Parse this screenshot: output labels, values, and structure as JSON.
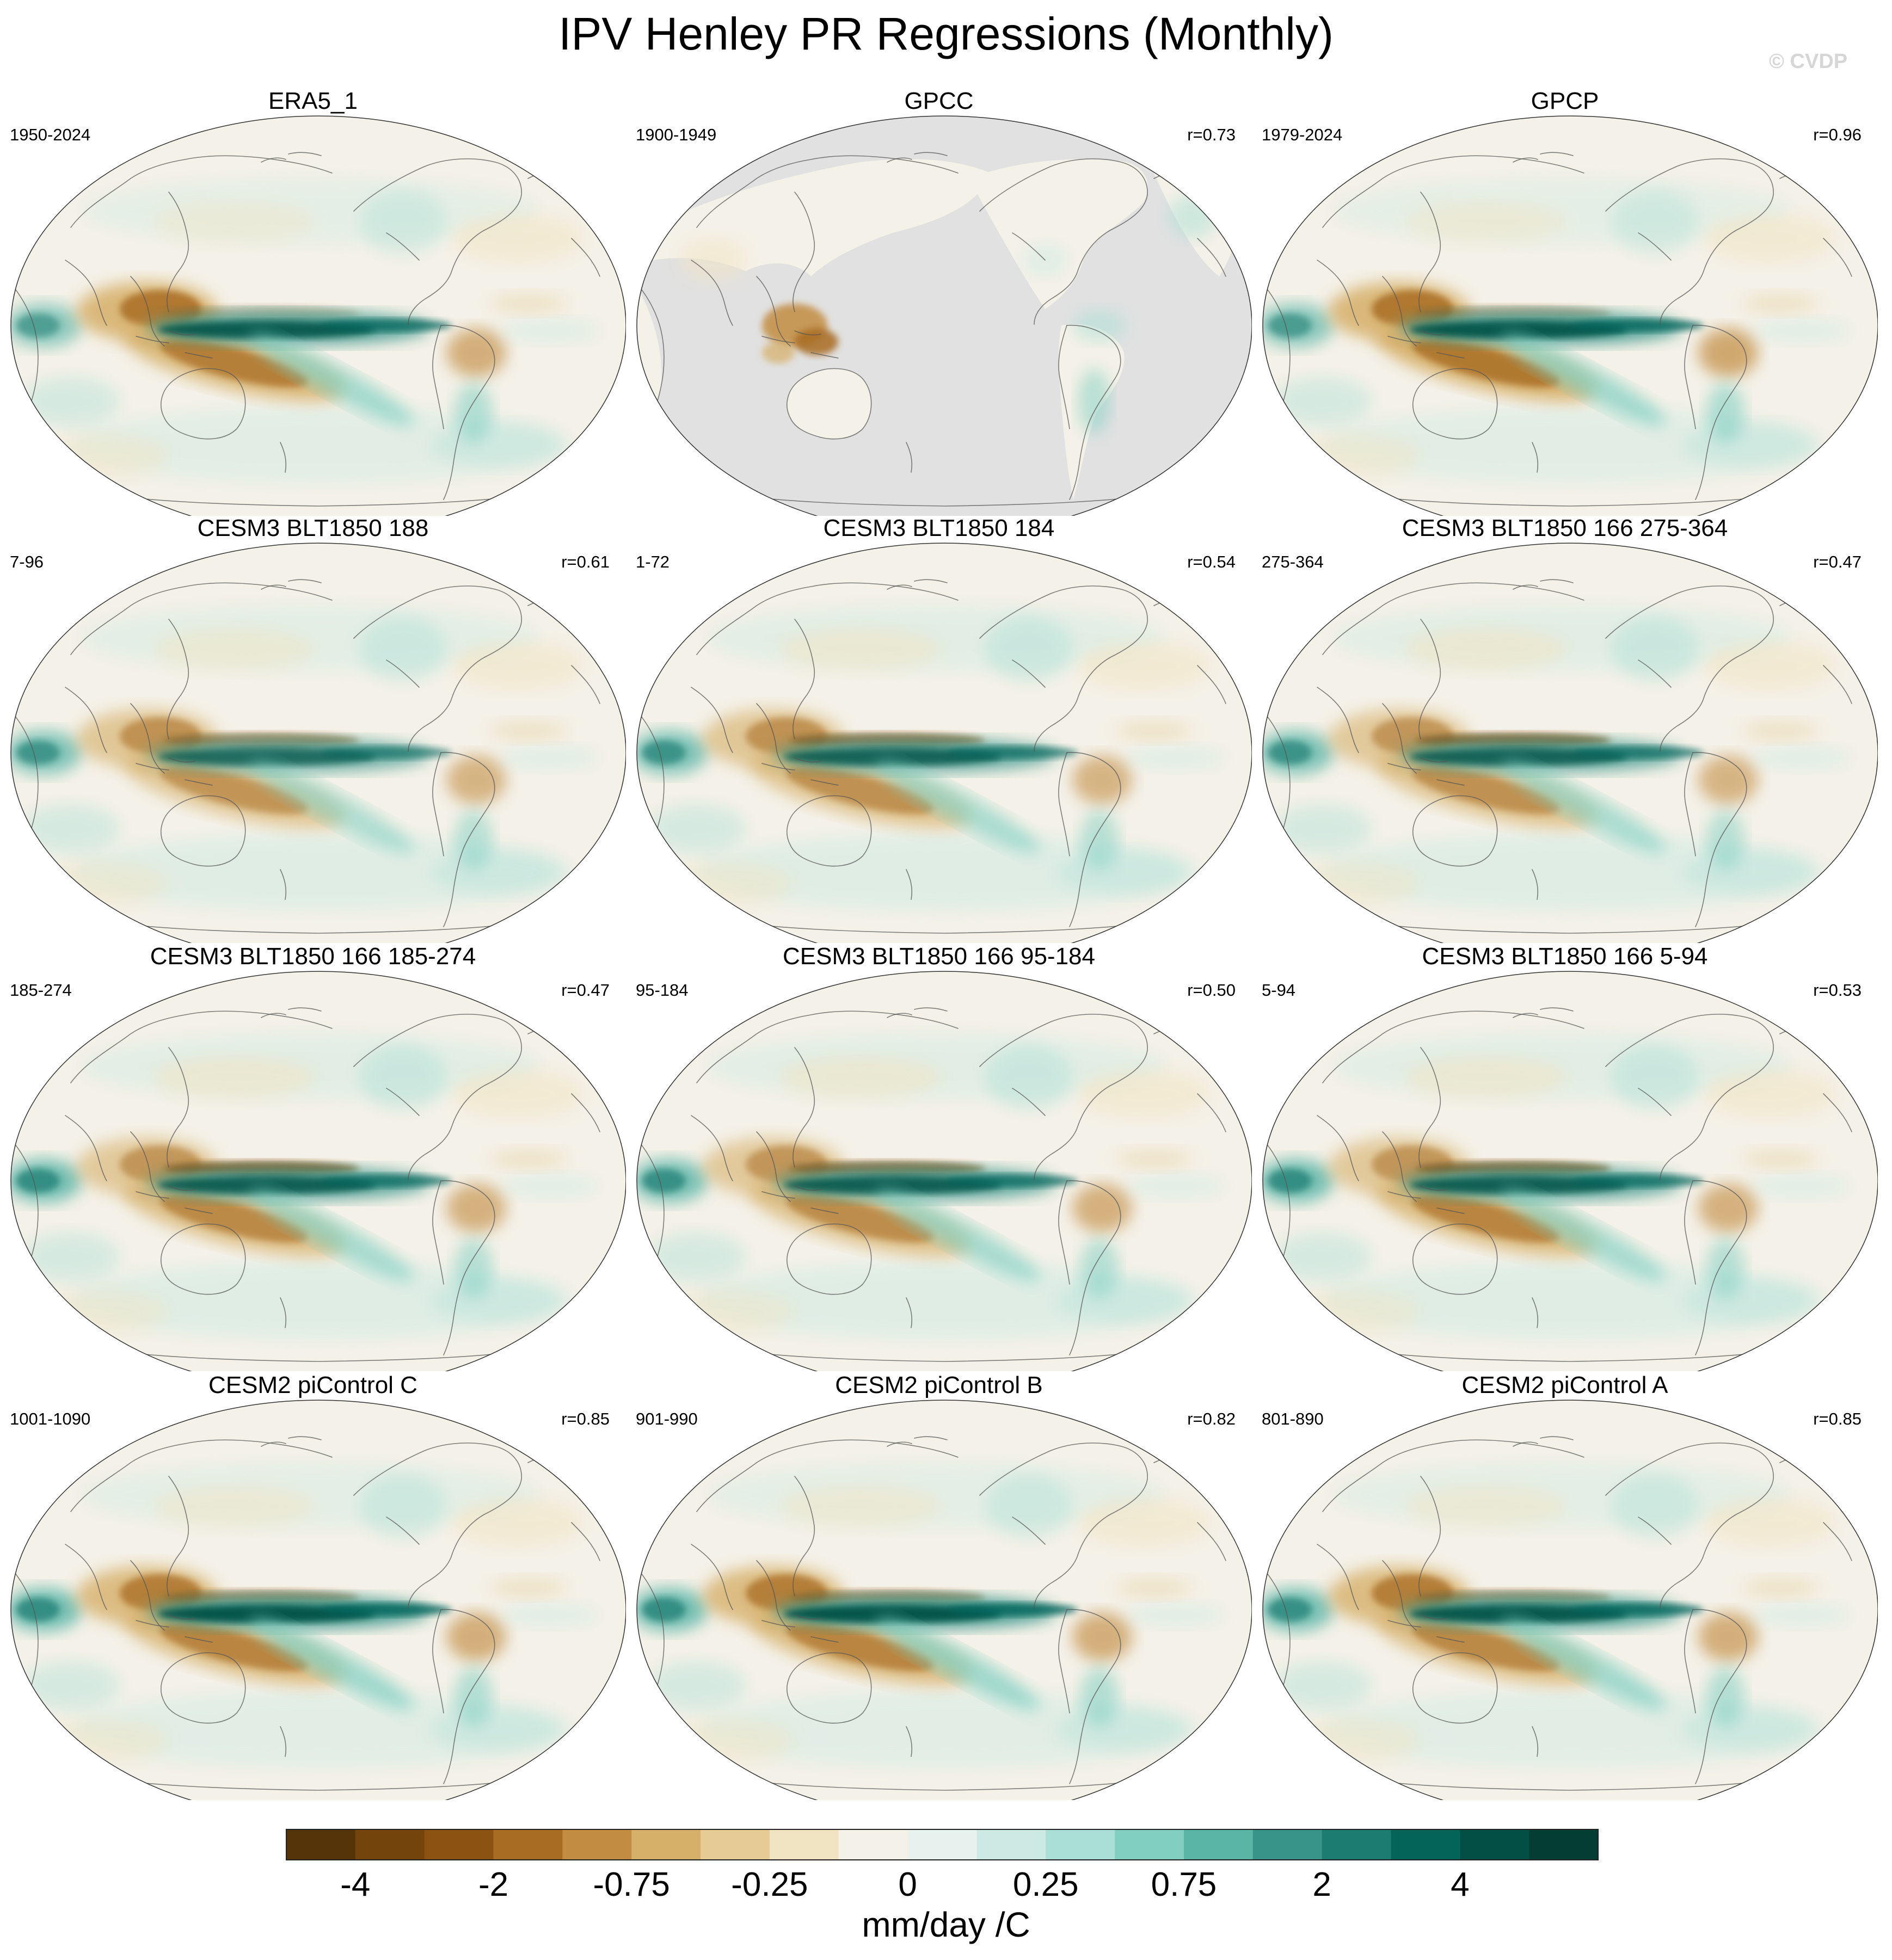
{
  "header": {
    "title": "IPV Henley PR Regressions (Monthly)",
    "watermark": "© CVDP"
  },
  "chart_data": {
    "type": "heatmap",
    "title": "IPV Henley PR Regressions (Monthly)",
    "variable": "precipitation regression on IPV index",
    "projection": "Robinson, Pacific-centered",
    "panels": [
      {
        "name": "ERA5_1",
        "period": "1950-2024",
        "corr": "",
        "land_only": false,
        "pattern": {
          "wpac_dry": 0.85,
          "cpac_wet": 0.85,
          "offeq_dry": 0.2,
          "spcz_dry": 0.85,
          "io_wet": 0.5,
          "amazon_dry": 0.6,
          "extratrop_wet": 0.3
        }
      },
      {
        "name": "GPCC",
        "period": "1900-1949",
        "corr": "r=0.73",
        "land_only": true,
        "pattern": {
          "wpac_dry": 0.6,
          "cpac_wet": 0.0,
          "offeq_dry": 0.0,
          "spcz_dry": 0.0,
          "io_wet": 0.0,
          "amazon_dry": 0.2,
          "extratrop_wet": 0.3
        }
      },
      {
        "name": "GPCP",
        "period": "1979-2024",
        "corr": "r=0.96",
        "land_only": false,
        "pattern": {
          "wpac_dry": 0.85,
          "cpac_wet": 0.9,
          "offeq_dry": 0.35,
          "spcz_dry": 0.95,
          "io_wet": 0.55,
          "amazon_dry": 0.7,
          "extratrop_wet": 0.3
        }
      },
      {
        "name": "CESM3 BLT1850 188",
        "period": "7-96",
        "corr": "r=0.61",
        "land_only": false,
        "pattern": {
          "wpac_dry": 0.5,
          "cpac_wet": 0.65,
          "offeq_dry": 0.6,
          "spcz_dry": 0.55,
          "io_wet": 0.65,
          "amazon_dry": 0.5,
          "extratrop_wet": 0.4
        }
      },
      {
        "name": "CESM3 BLT1850 184",
        "period": "1-72",
        "corr": "r=0.54",
        "land_only": false,
        "pattern": {
          "wpac_dry": 0.5,
          "cpac_wet": 0.75,
          "offeq_dry": 0.75,
          "spcz_dry": 0.6,
          "io_wet": 0.7,
          "amazon_dry": 0.5,
          "extratrop_wet": 0.45
        }
      },
      {
        "name": "CESM3 BLT1850 166 275-364",
        "period": "275-364",
        "corr": "r=0.47",
        "land_only": false,
        "pattern": {
          "wpac_dry": 0.45,
          "cpac_wet": 0.75,
          "offeq_dry": 0.85,
          "spcz_dry": 0.6,
          "io_wet": 0.7,
          "amazon_dry": 0.5,
          "extratrop_wet": 0.45
        }
      },
      {
        "name": "CESM3 BLT1850 166 185-274",
        "period": "185-274",
        "corr": "r=0.47",
        "land_only": false,
        "pattern": {
          "wpac_dry": 0.45,
          "cpac_wet": 0.8,
          "offeq_dry": 0.9,
          "spcz_dry": 0.7,
          "io_wet": 0.8,
          "amazon_dry": 0.55,
          "extratrop_wet": 0.45
        }
      },
      {
        "name": "CESM3 BLT1850 166 95-184",
        "period": "95-184",
        "corr": "r=0.50",
        "land_only": false,
        "pattern": {
          "wpac_dry": 0.45,
          "cpac_wet": 0.8,
          "offeq_dry": 0.8,
          "spcz_dry": 0.65,
          "io_wet": 0.75,
          "amazon_dry": 0.55,
          "extratrop_wet": 0.45
        }
      },
      {
        "name": "CESM3 BLT1850 166 5-94",
        "period": "5-94",
        "corr": "r=0.53",
        "land_only": false,
        "pattern": {
          "wpac_dry": 0.45,
          "cpac_wet": 0.8,
          "offeq_dry": 0.85,
          "spcz_dry": 0.75,
          "io_wet": 0.8,
          "amazon_dry": 0.55,
          "extratrop_wet": 0.45
        }
      },
      {
        "name": "CESM2 piControl C",
        "period": "1001-1090",
        "corr": "r=0.85",
        "land_only": false,
        "pattern": {
          "wpac_dry": 0.75,
          "cpac_wet": 0.95,
          "offeq_dry": 0.55,
          "spcz_dry": 0.75,
          "io_wet": 0.8,
          "amazon_dry": 0.6,
          "extratrop_wet": 0.35
        }
      },
      {
        "name": "CESM2 piControl B",
        "period": "901-990",
        "corr": "r=0.82",
        "land_only": false,
        "pattern": {
          "wpac_dry": 0.75,
          "cpac_wet": 0.95,
          "offeq_dry": 0.55,
          "spcz_dry": 0.75,
          "io_wet": 0.8,
          "amazon_dry": 0.6,
          "extratrop_wet": 0.35
        }
      },
      {
        "name": "CESM2 piControl A",
        "period": "801-890",
        "corr": "r=0.85",
        "land_only": false,
        "pattern": {
          "wpac_dry": 0.75,
          "cpac_wet": 0.9,
          "offeq_dry": 0.5,
          "spcz_dry": 0.7,
          "io_wet": 0.75,
          "amazon_dry": 0.6,
          "extratrop_wet": 0.35
        }
      }
    ],
    "colorbar": {
      "units": "mm/day /C",
      "levels": [
        -4,
        -3,
        -2,
        -1,
        -0.75,
        -0.5,
        -0.25,
        -0.1,
        0,
        0.1,
        0.25,
        0.5,
        0.75,
        1,
        2,
        3,
        4
      ],
      "tick_labels": [
        {
          "level": -4,
          "label": "-4"
        },
        {
          "level": -2,
          "label": "-2"
        },
        {
          "level": -0.75,
          "label": "-0.75"
        },
        {
          "level": -0.25,
          "label": "-0.25"
        },
        {
          "level": 0,
          "label": "0"
        },
        {
          "level": 0.25,
          "label": "0.25"
        },
        {
          "level": 0.75,
          "label": "0.75"
        },
        {
          "level": 2,
          "label": "2"
        },
        {
          "level": 4,
          "label": "4"
        }
      ],
      "colors": [
        "#553409",
        "#74440d",
        "#8c5212",
        "#a86c23",
        "#c28d42",
        "#d6af68",
        "#e6cc94",
        "#f1e4c2",
        "#f4f1e8",
        "#e7f2ef",
        "#cceae3",
        "#aadfd5",
        "#80cfc1",
        "#5bb5a7",
        "#389489",
        "#1d7c72",
        "#05645a",
        "#044f45",
        "#033d34"
      ]
    }
  }
}
